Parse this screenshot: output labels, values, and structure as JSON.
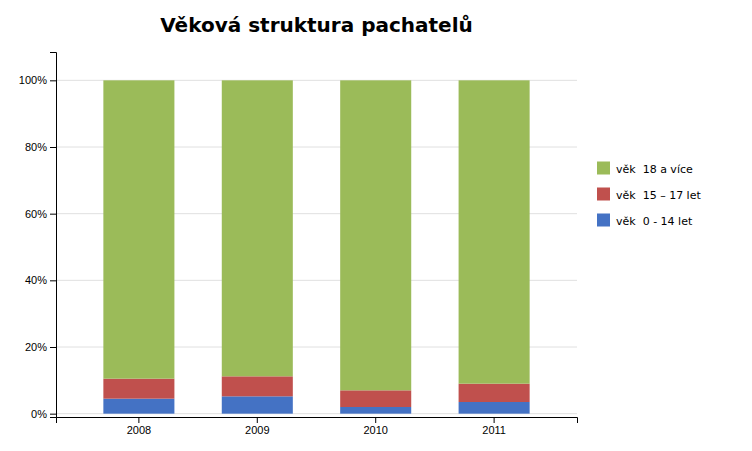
{
  "chart_data": {
    "type": "bar",
    "stacked": true,
    "title": "Věková struktura pachatelů",
    "categories": [
      "2008",
      "2009",
      "2010",
      "2011"
    ],
    "series": [
      {
        "name": "věk  0 - 14 let",
        "color": "#4472C4",
        "values": [
          4.5,
          5.2,
          2.0,
          3.5
        ]
      },
      {
        "name": "věk  15 – 17 let",
        "color": "#C0504D",
        "values": [
          6.0,
          6.0,
          5.0,
          5.5
        ]
      },
      {
        "name": "věk  18 a více",
        "color": "#9BBB59",
        "values": [
          89.5,
          88.8,
          93.0,
          91.0
        ]
      }
    ],
    "ylim": [
      -1,
      108.5
    ],
    "yticks": [
      {
        "value": 0,
        "label": "0%"
      },
      {
        "value": 20,
        "label": "20%"
      },
      {
        "value": 40,
        "label": "40%"
      },
      {
        "value": 60,
        "label": "60%"
      },
      {
        "value": 80,
        "label": "80%"
      },
      {
        "value": 100,
        "label": "100%"
      }
    ],
    "grid": true,
    "legend": "right"
  }
}
